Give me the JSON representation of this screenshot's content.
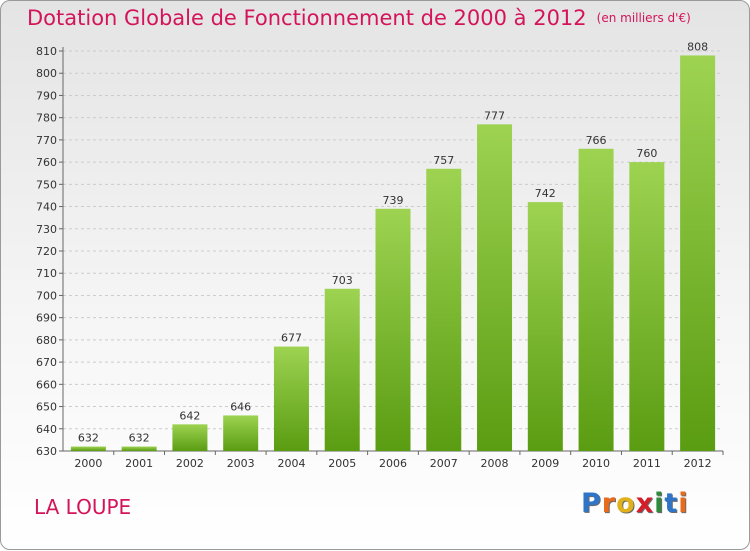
{
  "header": {
    "title": "Dotation Globale de Fonctionnement de 2000 à 2012",
    "unit": "(en milliers d'€)"
  },
  "footer": {
    "city": "LA LOUPE",
    "logo_letters": [
      "P",
      "r",
      "o",
      "x",
      "i",
      "t",
      "i"
    ],
    "logo_colors": [
      "#2e75c8",
      "#e86a1a",
      "#e0b11a",
      "#d41e2a",
      "#2e8b3e",
      "#2e75c8",
      "#e86a1a"
    ]
  },
  "colors": {
    "bar_light": "#9dd351",
    "bar_dark": "#5a9c12",
    "grid": "#cccccc",
    "title": "#d4145a"
  },
  "chart_data": {
    "type": "bar",
    "title": "Dotation Globale de Fonctionnement de 2000 à 2012",
    "categories": [
      "2000",
      "2001",
      "2002",
      "2003",
      "2004",
      "2005",
      "2006",
      "2007",
      "2008",
      "2009",
      "2010",
      "2011",
      "2012"
    ],
    "values": [
      632,
      632,
      642,
      646,
      677,
      703,
      739,
      757,
      777,
      742,
      766,
      760,
      808
    ],
    "ylim": [
      630,
      810
    ],
    "yticks": [
      630,
      640,
      650,
      660,
      670,
      680,
      690,
      700,
      710,
      720,
      730,
      740,
      750,
      760,
      770,
      780,
      790,
      800,
      810
    ],
    "grid": true
  }
}
